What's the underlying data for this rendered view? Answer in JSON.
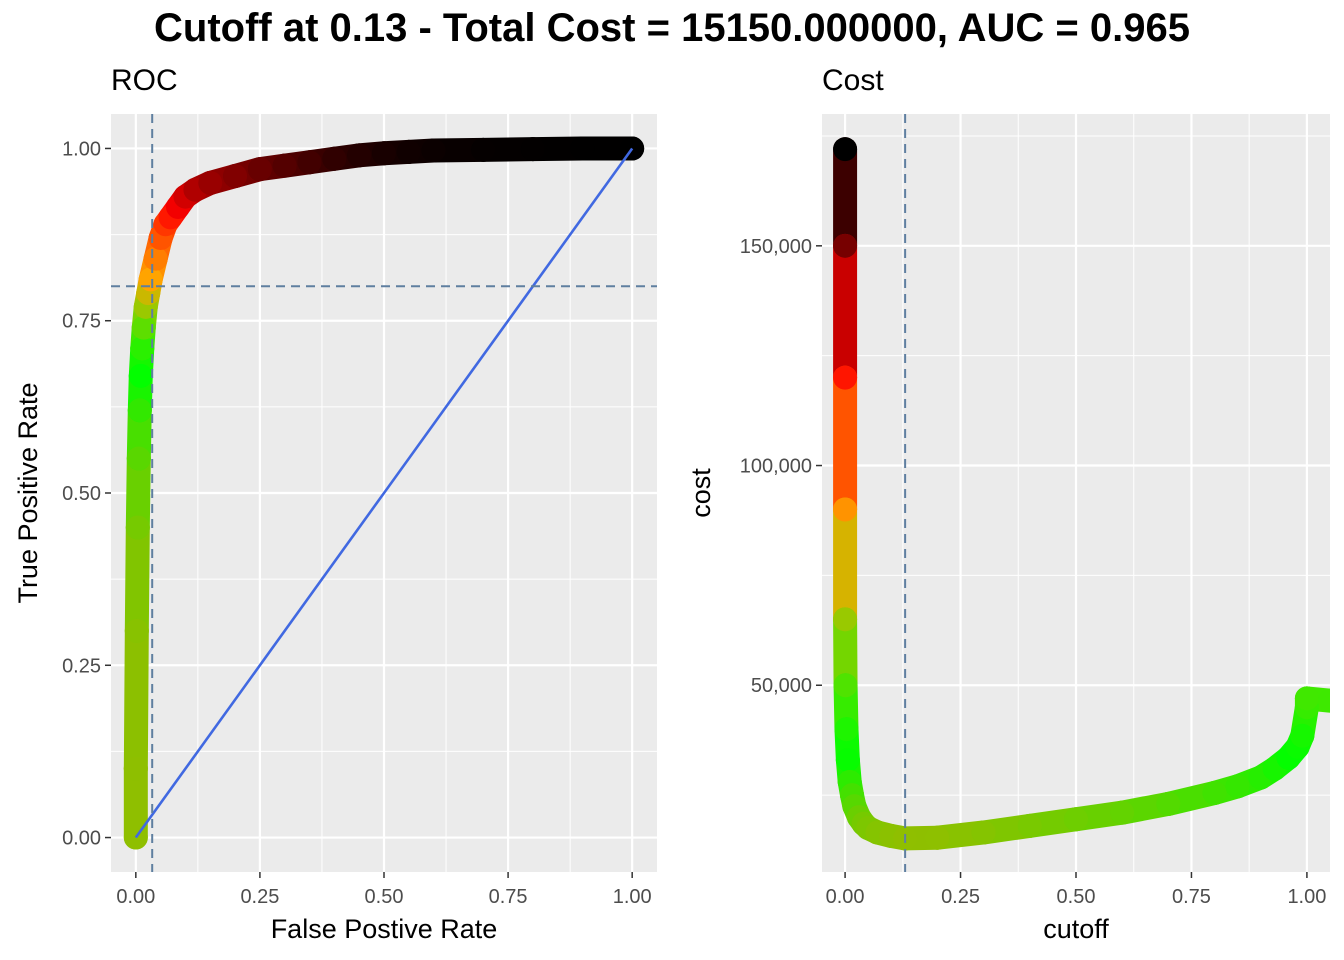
{
  "title": "Cutoff at 0.13 - Total Cost = 15150.000000, AUC = 0.965",
  "colors": {
    "panel_background": "#EBEBEB",
    "grid": "#FFFFFF",
    "reference_line": "#4169E1",
    "threshold_line": "#5F7FA0",
    "gradient": [
      "#8FBF00",
      "#00FF00",
      "#FFA500",
      "#FF0000",
      "#000000"
    ]
  },
  "chart_data": [
    {
      "type": "line",
      "title": "ROC",
      "xlabel": "False Postive Rate",
      "ylabel": "True Positive Rate",
      "xlim": [
        -0.05,
        1.05
      ],
      "ylim": [
        -0.05,
        1.05
      ],
      "xticks": [
        0.0,
        0.25,
        0.5,
        0.75,
        1.0
      ],
      "xtick_labels": [
        "0.00",
        "0.25",
        "0.50",
        "0.75",
        "1.00"
      ],
      "yticks": [
        0.0,
        0.25,
        0.5,
        0.75,
        1.0
      ],
      "ytick_labels": [
        "0.00",
        "0.25",
        "0.50",
        "0.75",
        "1.00"
      ],
      "grid": true,
      "x": [
        0.0,
        0.0,
        0.002,
        0.004,
        0.006,
        0.008,
        0.01,
        0.013,
        0.016,
        0.02,
        0.025,
        0.03,
        0.04,
        0.05,
        0.06,
        0.07,
        0.085,
        0.1,
        0.12,
        0.15,
        0.2,
        0.25,
        0.3,
        0.35,
        0.4,
        0.45,
        0.5,
        0.55,
        0.6,
        0.7,
        0.8,
        0.9,
        1.0
      ],
      "y": [
        0.0,
        0.1,
        0.3,
        0.45,
        0.55,
        0.62,
        0.67,
        0.71,
        0.74,
        0.77,
        0.79,
        0.81,
        0.84,
        0.87,
        0.89,
        0.9,
        0.915,
        0.93,
        0.94,
        0.95,
        0.96,
        0.97,
        0.975,
        0.98,
        0.985,
        0.99,
        0.993,
        0.995,
        0.997,
        0.998,
        0.999,
        1.0,
        1.0
      ],
      "color_by_cutoff": [
        1.0,
        0.9,
        0.8,
        0.7,
        0.62,
        0.55,
        0.48,
        0.42,
        0.36,
        0.3,
        0.26,
        0.22,
        0.19,
        0.16,
        0.14,
        0.12,
        0.1,
        0.085,
        0.07,
        0.06,
        0.05,
        0.04,
        0.032,
        0.025,
        0.018,
        0.013,
        0.009,
        0.006,
        0.004,
        0.002,
        0.001,
        0.0005,
        0.0
      ],
      "reference_line": {
        "x": [
          0.0,
          1.0
        ],
        "y": [
          0.0,
          1.0
        ]
      },
      "threshold_lines": {
        "x": 0.033,
        "y": 0.8
      }
    },
    {
      "type": "line",
      "title": "Cost",
      "xlabel": "cutoff",
      "ylabel": "cost",
      "xlim": [
        -0.05,
        1.05
      ],
      "ylim": [
        7500,
        180000
      ],
      "xticks": [
        0.0,
        0.25,
        0.5,
        0.75,
        1.0
      ],
      "xtick_labels": [
        "0.00",
        "0.25",
        "0.50",
        "0.75",
        "1.00"
      ],
      "yticks": [
        50000,
        100000,
        150000
      ],
      "ytick_labels": [
        "50,000",
        "100,000",
        "150,000"
      ],
      "grid": true,
      "x": [
        0.0,
        0.0,
        0.0,
        0.0,
        0.0,
        0.001,
        0.003,
        0.006,
        0.01,
        0.015,
        0.02,
        0.03,
        0.04,
        0.05,
        0.07,
        0.1,
        0.13,
        0.2,
        0.3,
        0.4,
        0.5,
        0.6,
        0.7,
        0.8,
        0.85,
        0.9,
        0.93,
        0.96,
        0.98,
        0.99,
        1.0,
        1.0,
        1.05
      ],
      "y": [
        172000,
        150000,
        120000,
        90000,
        65000,
        50000,
        40000,
        33000,
        28000,
        25000,
        22500,
        20000,
        18500,
        17500,
        16500,
        15700,
        15150,
        15300,
        16500,
        18000,
        19500,
        21000,
        23000,
        25500,
        27000,
        29000,
        31000,
        33500,
        36000,
        38500,
        45000,
        47000,
        46500
      ],
      "color_by_cutoff": [
        0.0,
        0.0,
        0.0,
        0.0,
        0.0,
        0.001,
        0.003,
        0.006,
        0.01,
        0.015,
        0.02,
        0.03,
        0.04,
        0.05,
        0.07,
        0.1,
        0.13,
        0.2,
        0.3,
        0.4,
        0.5,
        0.6,
        0.7,
        0.8,
        0.85,
        0.9,
        0.93,
        0.96,
        0.98,
        0.99,
        1.0,
        1.0,
        1.0
      ],
      "threshold_lines": {
        "x": 0.13
      }
    }
  ]
}
